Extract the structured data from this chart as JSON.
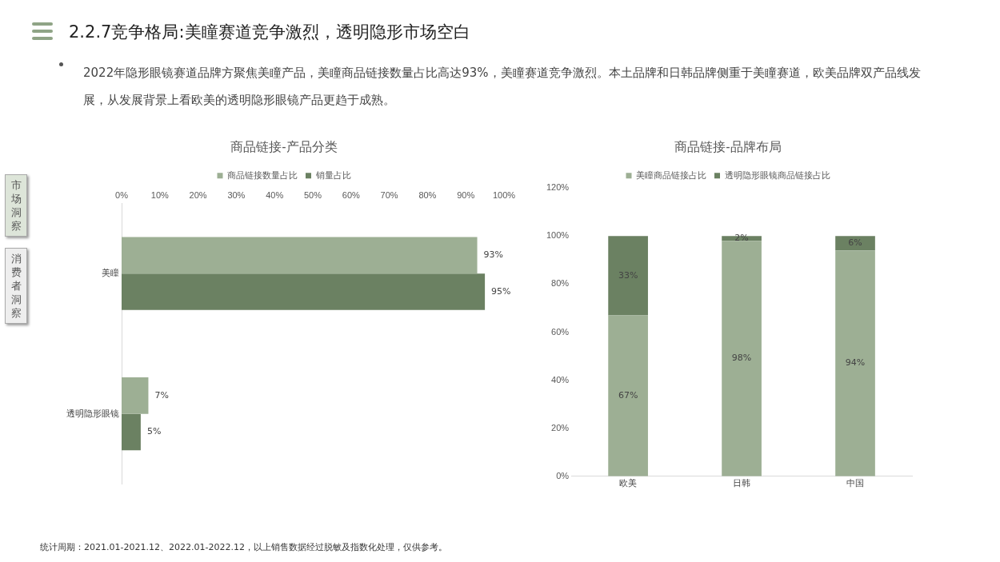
{
  "chart_data": [
    {
      "type": "other",
      "title": "2.2.7竞争格局:美瞳赛道竞争激烈，透明隐形市场空白",
      "annotations": [
        "2022年隐形眼镜赛道品牌方聚焦美瞳产品，美瞳商品链接数量占比高达93%，美瞳赛道竞争激烈。本土品牌和日韩品牌侧重于美瞳赛道，欧美品牌双产品线发展，从发展背景上看欧美的透明隐形眼镜产品更趋于成熟。",
        "市场洞察",
        "消费者洞察",
        "统计周期：2021.01-2021.12、2022.01-2022.12，以上销售数据经过脱敏及指数化处理，仅供参考。"
      ]
    },
    {
      "type": "bar",
      "orientation": "horizontal",
      "title": "商品链接-产品分类",
      "categories": [
        "美瞳",
        "透明隐形眼镜"
      ],
      "series": [
        {
          "name": "商品链接数量占比",
          "color": "#9daf94",
          "values": [
            93,
            7
          ],
          "value_labels": [
            "93%",
            "7%"
          ]
        },
        {
          "name": "销量占比",
          "color": "#6b8162",
          "values": [
            95,
            5
          ],
          "value_labels": [
            "95%",
            "5%"
          ]
        }
      ],
      "xlim": [
        0,
        100
      ],
      "xticks": [
        {
          "value": 0,
          "label": "0%"
        },
        {
          "value": 10,
          "label": "10%"
        },
        {
          "value": 20,
          "label": "20%"
        },
        {
          "value": 30,
          "label": "30%"
        },
        {
          "value": 40,
          "label": "40%"
        },
        {
          "value": 50,
          "label": "50%"
        },
        {
          "value": 60,
          "label": "60%"
        },
        {
          "value": 70,
          "label": "70%"
        },
        {
          "value": 80,
          "label": "80%"
        },
        {
          "value": 90,
          "label": "90%"
        },
        {
          "value": 100,
          "label": "100%"
        }
      ],
      "legend": "top",
      "grid": false
    },
    {
      "type": "bar",
      "stacked": true,
      "title": "商品链接-品牌布局",
      "categories": [
        "欧美",
        "日韩",
        "中国"
      ],
      "series": [
        {
          "name": "美瞳商品链接占比",
          "color": "#9daf94",
          "values": [
            67,
            98,
            94
          ],
          "value_labels": [
            "67%",
            "98%",
            "94%"
          ]
        },
        {
          "name": "透明隐形眼镜商品链接占比",
          "color": "#6b8162",
          "values": [
            33,
            2,
            6
          ],
          "value_labels": [
            "33%",
            "2%",
            "6%"
          ]
        }
      ],
      "ylim": [
        0,
        120
      ],
      "yticks": [
        {
          "value": 0,
          "label": "0%"
        },
        {
          "value": 20,
          "label": "20%"
        },
        {
          "value": 40,
          "label": "40%"
        },
        {
          "value": 60,
          "label": "60%"
        },
        {
          "value": 80,
          "label": "80%"
        },
        {
          "value": 100,
          "label": "100%"
        },
        {
          "value": 120,
          "label": "120%"
        }
      ],
      "legend": "top",
      "grid": false
    }
  ]
}
